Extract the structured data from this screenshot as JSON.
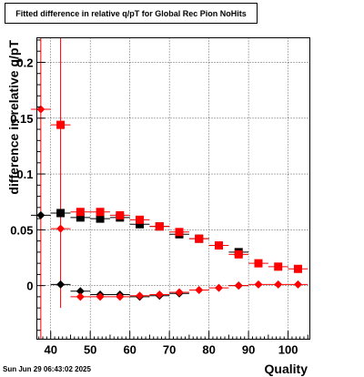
{
  "chart_data": {
    "type": "scatter",
    "title": "Fitted difference in relative q/pT for Global Rec Pion NoHits",
    "xlabel": "Quality",
    "ylabel": "difference in relative q/pT",
    "xlim": [
      36.5,
      105.5
    ],
    "ylim": [
      -0.048,
      0.222
    ],
    "grid": true,
    "x_ticks": [
      40,
      50,
      60,
      70,
      80,
      90,
      100
    ],
    "x_tick_labels": [
      "40",
      "50",
      "60",
      "70",
      "80",
      "90",
      "100"
    ],
    "y_ticks": [
      0,
      0.05,
      0.1,
      0.15,
      0.2
    ],
    "y_tick_labels": [
      "0",
      "0.05",
      "0.1",
      "0.15",
      "0.2"
    ],
    "series": [
      {
        "marker": "square",
        "color": "#000000",
        "x_err": 2.5,
        "points": [
          [
            42.5,
            0.065
          ],
          [
            47.5,
            0.061
          ],
          [
            52.5,
            0.06
          ],
          [
            57.5,
            0.061
          ],
          [
            62.5,
            0.055
          ],
          [
            67.5,
            0.053
          ],
          [
            72.5,
            0.046
          ],
          [
            77.5,
            0.042
          ],
          [
            87.5,
            0.03
          ]
        ]
      },
      {
        "marker": "diamond",
        "color": "#000000",
        "x_err": 2.5,
        "points": [
          [
            37.5,
            0.063
          ],
          [
            42.5,
            0.001
          ],
          [
            47.5,
            -0.005
          ],
          [
            52.5,
            -0.008
          ],
          [
            57.5,
            -0.008
          ],
          [
            62.5,
            -0.01
          ],
          [
            67.5,
            -0.009
          ],
          [
            72.5,
            -0.007
          ],
          [
            87.5,
            0.0
          ]
        ]
      },
      {
        "marker": "square",
        "color": "#ff0000",
        "x_err": 2.5,
        "points": [
          [
            42.5,
            0.144
          ],
          [
            47.5,
            0.066
          ],
          [
            52.5,
            0.066
          ],
          [
            57.5,
            0.063
          ],
          [
            62.5,
            0.059
          ],
          [
            67.5,
            0.053
          ],
          [
            72.5,
            0.048
          ],
          [
            77.5,
            0.042
          ],
          [
            82.5,
            0.036
          ],
          [
            87.5,
            0.028
          ],
          [
            92.5,
            0.02
          ],
          [
            97.5,
            0.017
          ],
          [
            102.5,
            0.015
          ]
        ]
      },
      {
        "marker": "diamond",
        "color": "#ff0000",
        "x_err": 2.5,
        "points": [
          [
            37.5,
            0.158
          ],
          [
            42.5,
            0.051
          ],
          [
            47.5,
            -0.01
          ],
          [
            52.5,
            -0.01
          ],
          [
            57.5,
            -0.01
          ],
          [
            62.5,
            -0.009
          ],
          [
            67.5,
            -0.008
          ],
          [
            72.5,
            -0.006
          ],
          [
            77.5,
            -0.004
          ],
          [
            82.5,
            -0.002
          ],
          [
            87.5,
            0.0
          ],
          [
            92.5,
            0.001
          ],
          [
            97.5,
            0.001
          ],
          [
            102.5,
            0.001
          ]
        ]
      }
    ],
    "error_bars": [
      {
        "x": 37.5,
        "y_low": -0.048,
        "y_high": 0.222,
        "color": "#ff0000"
      },
      {
        "x": 42.5,
        "y_low": -0.02,
        "y_high": 0.222,
        "color": "#ff0000"
      }
    ]
  },
  "timestamp": "Sun Jun 29 06:43:02 2025",
  "colors": {
    "frame": "#000000",
    "grid": "#000000",
    "accent": "#ff0000"
  }
}
